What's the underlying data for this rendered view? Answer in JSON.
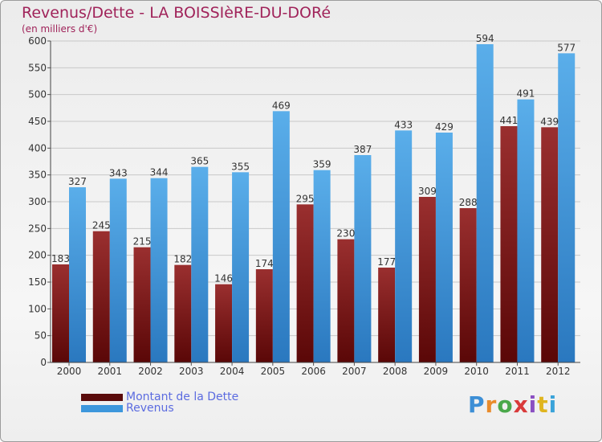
{
  "header": {
    "title": "Revenus/Dette - LA BOISSIèRE-DU-DORé",
    "subtitle": "(en milliers d'€)"
  },
  "chart_data": {
    "type": "bar",
    "categories": [
      "2000",
      "2001",
      "2002",
      "2003",
      "2004",
      "2005",
      "2006",
      "2007",
      "2008",
      "2009",
      "2010",
      "2011",
      "2012"
    ],
    "series": [
      {
        "name": "Montant de la Dette",
        "color": "#7a1c1c",
        "values": [
          183,
          245,
          215,
          182,
          146,
          174,
          295,
          230,
          177,
          309,
          288,
          441,
          439
        ]
      },
      {
        "name": "Revenus",
        "color": "#3d97dc",
        "values": [
          327,
          343,
          344,
          365,
          355,
          469,
          359,
          387,
          433,
          429,
          594,
          491,
          577
        ]
      }
    ],
    "ylim": [
      0,
      600
    ],
    "yticks": [
      0,
      50,
      100,
      150,
      200,
      250,
      300,
      350,
      400,
      450,
      500,
      550,
      600
    ],
    "grid": true,
    "legend_position": "bottom-left"
  },
  "logo": {
    "text": "Proxiti",
    "letter_colors": [
      "#3d8fd6",
      "#e98b2b",
      "#4aa84a",
      "#d93a3a",
      "#8a4fc2",
      "#e0b51f",
      "#3aa3d9"
    ]
  }
}
